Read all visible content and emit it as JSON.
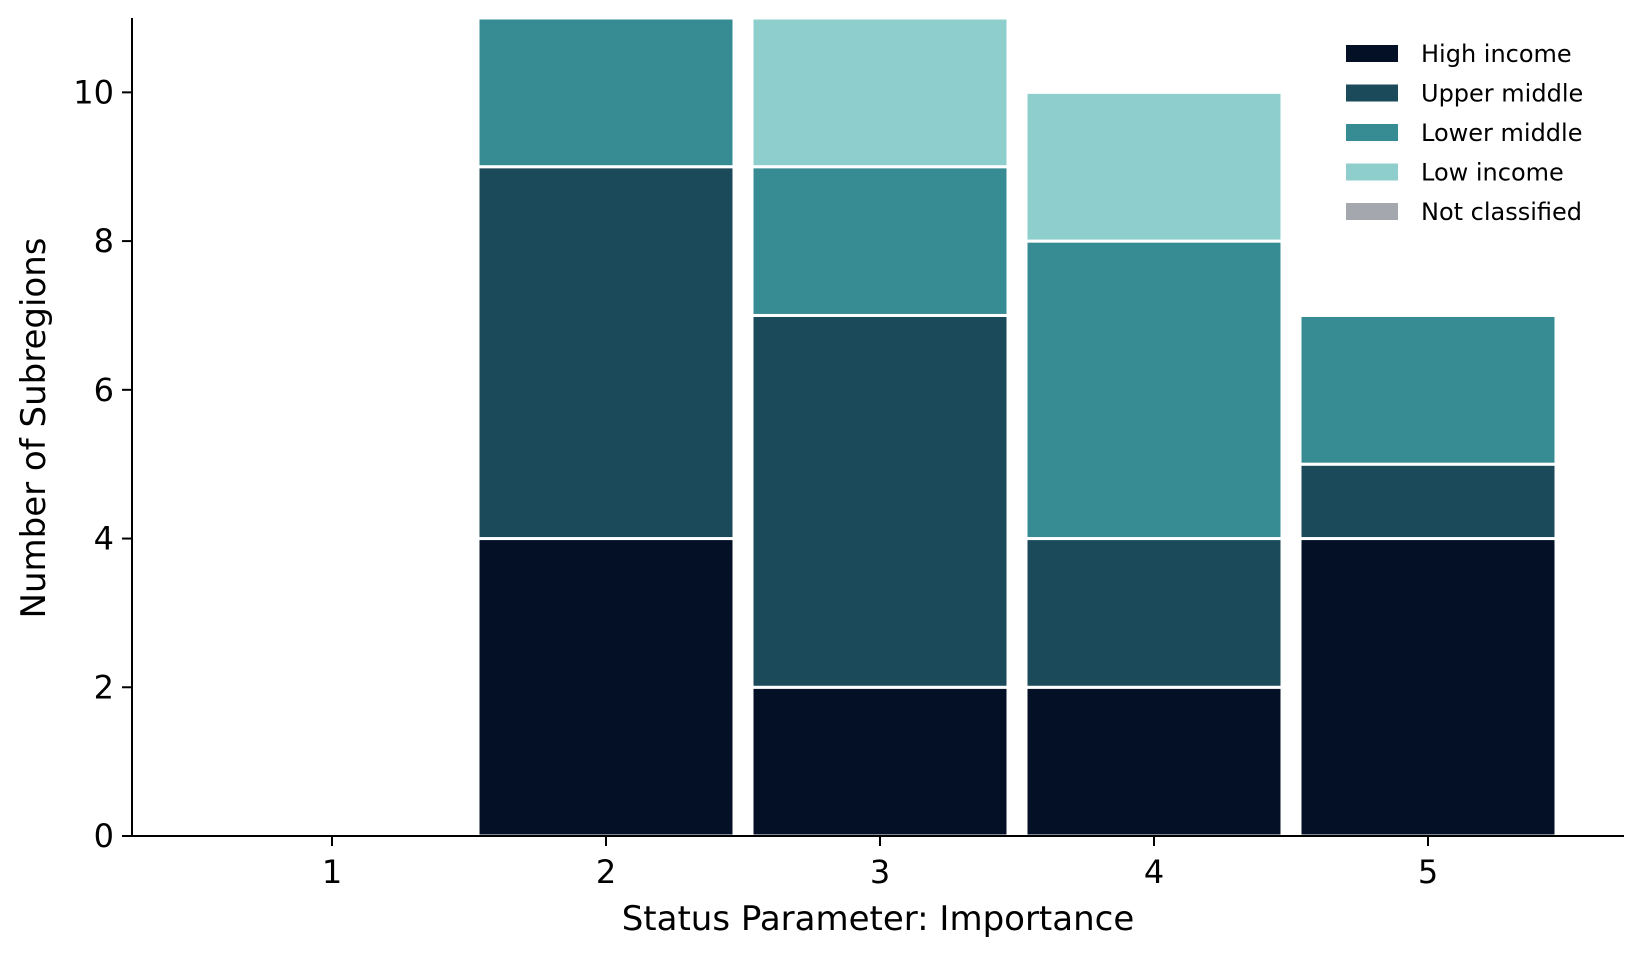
{
  "chart_data": {
    "type": "bar",
    "stacked": true,
    "title": "",
    "xlabel": "Status Parameter: Importance",
    "ylabel": "Number of Subregions",
    "categories": [
      "1",
      "2",
      "3",
      "4",
      "5"
    ],
    "yticks": [
      "0",
      "2",
      "4",
      "6",
      "8",
      "10"
    ],
    "ylim": [
      0,
      11
    ],
    "grid": false,
    "legend_position": "top-right",
    "series": [
      {
        "name": "High income",
        "color": "#031026",
        "values": [
          0,
          4,
          2,
          2,
          4
        ]
      },
      {
        "name": "Upper middle",
        "color": "#1B4A5A",
        "values": [
          0,
          5,
          5,
          2,
          1
        ]
      },
      {
        "name": "Lower middle",
        "color": "#378C94",
        "values": [
          0,
          2,
          2,
          4,
          2
        ]
      },
      {
        "name": "Low income",
        "color": "#8ECFCE",
        "values": [
          0,
          0,
          2,
          2,
          0
        ]
      },
      {
        "name": "Not classified",
        "color": "#A4A7AD",
        "values": [
          0,
          0,
          0,
          0,
          0
        ]
      }
    ]
  }
}
